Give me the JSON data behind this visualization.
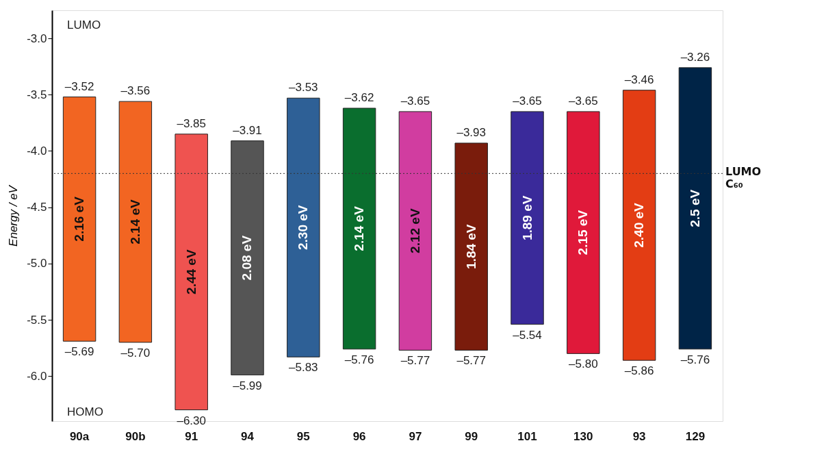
{
  "chart_data": {
    "type": "bar",
    "ylabel": "Energy / eV",
    "categories": [
      "90a",
      "90b",
      "91",
      "94",
      "95",
      "96",
      "97",
      "99",
      "101",
      "130",
      "93",
      "129"
    ],
    "base": [
      -5.69,
      -5.7,
      -6.3,
      -5.99,
      -5.83,
      -5.76,
      -5.77,
      -5.77,
      -5.54,
      -5.8,
      -5.86,
      -5.76
    ],
    "values": [
      2.17,
      2.14,
      2.45,
      2.08,
      2.3,
      2.14,
      2.12,
      1.84,
      1.89,
      2.15,
      2.4,
      2.5
    ],
    "colors": [
      "#f26522",
      "#f26522",
      "#ef5350",
      "#555555",
      "#2e6096",
      "#0a6e2e",
      "#d13da0",
      "#7a1c0c",
      "#3a2a9a",
      "#e0193a",
      "#e33d14",
      "#002447"
    ],
    "ylim": [
      -6.4,
      -2.75
    ],
    "yticks": [
      {
        "value": -3.0,
        "label": "-3.0"
      },
      {
        "value": -3.5,
        "label": "-3.5"
      },
      {
        "value": -4.0,
        "label": "-4.0"
      },
      {
        "value": -4.5,
        "label": "-4.5"
      },
      {
        "value": -5.0,
        "label": "-5.0"
      },
      {
        "value": -5.5,
        "label": "-5.5"
      },
      {
        "value": -6.0,
        "label": "-6.0"
      }
    ],
    "ref_lines": [
      {
        "axis": "y",
        "value": -4.2,
        "label": "LUMO\nC₆₀",
        "color": "#333333",
        "line_style": "dotted"
      }
    ],
    "annotations": [
      "LUMO",
      "HOMO",
      {
        "text": "–3.52",
        "x": "90a",
        "y": -3.52
      },
      {
        "text": "–3.56",
        "x": "90b",
        "y": -3.56
      },
      {
        "text": "–3.85",
        "x": "91",
        "y": -3.85
      },
      {
        "text": "–3.91",
        "x": "94",
        "y": -3.91
      },
      {
        "text": "–3.53",
        "x": "95",
        "y": -3.53
      },
      {
        "text": "–3.62",
        "x": "96",
        "y": -3.62
      },
      {
        "text": "–3.65",
        "x": "97",
        "y": -3.65
      },
      {
        "text": "–3.93",
        "x": "99",
        "y": -3.93
      },
      {
        "text": "–3.65",
        "x": "101",
        "y": -3.65
      },
      {
        "text": "–3.65",
        "x": "130",
        "y": -3.65
      },
      {
        "text": "–3.46",
        "x": "93",
        "y": -3.46
      },
      {
        "text": "–3.26",
        "x": "129",
        "y": -3.26
      },
      {
        "text": "–5.69",
        "x": "90a",
        "y": -5.69
      },
      {
        "text": "–5.70",
        "x": "90b",
        "y": -5.7
      },
      {
        "text": "–6.30",
        "x": "91",
        "y": -6.3
      },
      {
        "text": "–5.99",
        "x": "94",
        "y": -5.99
      },
      {
        "text": "–5.83",
        "x": "95",
        "y": -5.83
      },
      {
        "text": "–5.76",
        "x": "96",
        "y": -5.76
      },
      {
        "text": "–5.77",
        "x": "97",
        "y": -5.77
      },
      {
        "text": "–5.77",
        "x": "99",
        "y": -5.77
      },
      {
        "text": "–5.54",
        "x": "101",
        "y": -5.54
      },
      {
        "text": "–5.80",
        "x": "130",
        "y": -5.8
      },
      {
        "text": "–5.86",
        "x": "93",
        "y": -5.86
      },
      {
        "text": "–5.76",
        "x": "129",
        "y": -5.76
      },
      "2.16 eV",
      "2.14 eV",
      "2.44 eV",
      "2.08 eV",
      "2.30 eV",
      "2.14 eV",
      "2.12 eV",
      "1.84 eV",
      "1.89 eV",
      "2.15 eV",
      "2.40 eV",
      "2.5 eV"
    ]
  }
}
